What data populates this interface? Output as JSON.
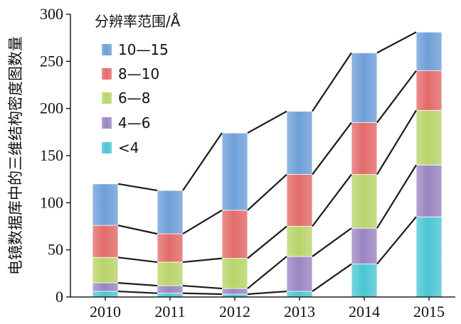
{
  "chart_data": {
    "type": "bar",
    "stacked": true,
    "categories": [
      "2010",
      "2011",
      "2012",
      "2013",
      "2014",
      "2015"
    ],
    "ylabel": "电镜数据库中的三维结构密度图数量",
    "xlabel": "",
    "ylim": [
      0,
      300
    ],
    "yticks": [
      0,
      50,
      100,
      150,
      200,
      250,
      300
    ],
    "legend_title": "分辨率范围/Å",
    "legend_position": "top-left",
    "grid": false,
    "connector_lines": true,
    "series": [
      {
        "name": "<4",
        "color": "#4bc6d4",
        "values": [
          6,
          4,
          3,
          6,
          35,
          85
        ]
      },
      {
        "name": "4—6",
        "color": "#9a86c2",
        "values": [
          9,
          8,
          6,
          37,
          38,
          55
        ]
      },
      {
        "name": "6—8",
        "color": "#b8d46a",
        "values": [
          27,
          25,
          32,
          32,
          57,
          58
        ]
      },
      {
        "name": "8—10",
        "color": "#e36a6a",
        "values": [
          34,
          30,
          51,
          55,
          55,
          42
        ]
      },
      {
        "name": "10—15",
        "color": "#6f9fd8",
        "values": [
          44,
          46,
          82,
          67,
          74,
          41
        ]
      }
    ]
  }
}
